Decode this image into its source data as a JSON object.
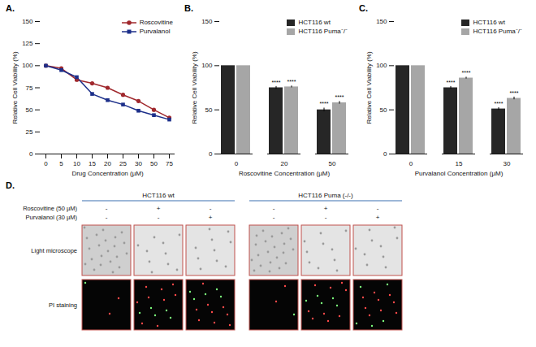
{
  "chart_data": [
    {
      "panel": "A.",
      "type": "line",
      "x_label": "Drug Concentration (µM)",
      "y_label": "Relative Cell Viability (%)",
      "categories": [
        0,
        5,
        10,
        15,
        20,
        25,
        30,
        50,
        75
      ],
      "series": [
        {
          "name": "Roscovitine",
          "color": "#a0282d",
          "marker": "circle",
          "values": [
            100,
            97,
            84,
            80,
            75,
            67,
            60,
            50,
            41
          ]
        },
        {
          "name": "Purvalanol",
          "color": "#1c2f8a",
          "marker": "square",
          "values": [
            100,
            95,
            87,
            68,
            61,
            56,
            49,
            44,
            39
          ]
        }
      ],
      "ylim": [
        0,
        150
      ],
      "yticks": [
        0,
        25,
        50,
        75,
        100,
        125,
        150
      ],
      "legend": "top-right"
    },
    {
      "panel": "B.",
      "type": "bar",
      "x_label": "Roscovitine Concentration (µM)",
      "y_label": "Relative Cell Viability (%)",
      "categories": [
        0,
        20,
        50
      ],
      "series": [
        {
          "name": "HCT116 wt",
          "color": "#262626",
          "values": [
            100,
            75,
            50
          ],
          "errors": [
            0,
            1.5,
            2
          ],
          "significance": [
            null,
            "****",
            "****"
          ]
        },
        {
          "name": "HCT116 Puma⁻/⁻",
          "color": "#a6a6a6",
          "values": [
            100,
            76,
            58
          ],
          "errors": [
            0,
            1,
            1.5
          ],
          "significance": [
            null,
            "****",
            "****"
          ]
        }
      ],
      "ylim": [
        0,
        150
      ],
      "yticks": [
        0,
        50,
        100,
        150
      ],
      "legend": "top-right"
    },
    {
      "panel": "C.",
      "type": "bar",
      "x_label": "Purvalanol Concentration (µM)",
      "y_label": "Relative Cell Viability (%)",
      "categories": [
        0,
        15,
        30
      ],
      "series": [
        {
          "name": "HCT116 wt",
          "color": "#262626",
          "values": [
            100,
            75,
            51
          ],
          "errors": [
            0,
            1.5,
            1.5
          ],
          "significance": [
            null,
            "****",
            "****"
          ]
        },
        {
          "name": "HCT116 Puma⁻/⁻",
          "color": "#a6a6a6",
          "values": [
            100,
            86,
            63
          ],
          "errors": [
            0,
            1,
            1.5
          ],
          "significance": [
            null,
            "****",
            "****"
          ]
        }
      ],
      "ylim": [
        0,
        150
      ],
      "yticks": [
        0,
        50,
        100,
        150
      ],
      "legend": "top-right"
    }
  ],
  "panel_d": {
    "panel": "D.",
    "groups": [
      "HCT116 wt",
      "HCT116 Puma (-/-)"
    ],
    "treatments": [
      {
        "name": "Roscovitine (50 µM)",
        "marks": [
          "-",
          "+",
          "-",
          "-",
          "+",
          "-"
        ]
      },
      {
        "name": "Purvalanol (30 µM)",
        "marks": [
          "-",
          "-",
          "+",
          "-",
          "-",
          "+"
        ]
      }
    ],
    "rows": [
      "Light microscope",
      "PI staining"
    ]
  }
}
